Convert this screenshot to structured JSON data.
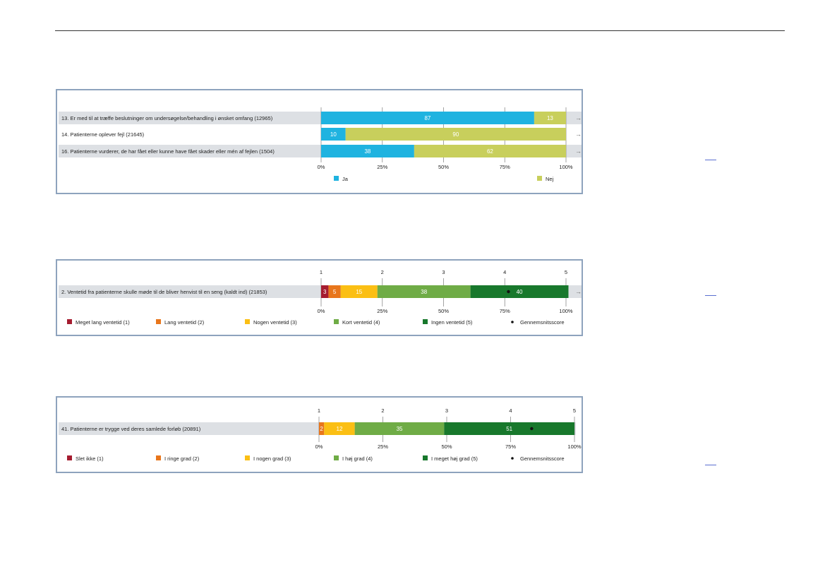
{
  "chart_data": [
    {
      "type": "bar",
      "stacked": true,
      "orientation": "horizontal",
      "percent_axis": true,
      "xlim": [
        0,
        100
      ],
      "x_ticks": [
        "0%",
        "25%",
        "50%",
        "75%",
        "100%"
      ],
      "categories": [
        "13. Er med til at træffe beslutninger om undersøgelse/behandling i ønsket omfang (12965)",
        "14. Patienterne oplever fejl (21645)",
        "16. Patienterne vurderer, de har fået eller kunne have fået skader eller mén af fejlen (1504)"
      ],
      "series": [
        {
          "name": "Ja",
          "color": "#1fb3e0",
          "values": [
            87,
            10,
            38
          ]
        },
        {
          "name": "Nej",
          "color": "#c8cf5c",
          "values": [
            13,
            90,
            62
          ]
        }
      ],
      "arrow_glyph": "→",
      "legend": "bottom"
    },
    {
      "type": "bar",
      "stacked": true,
      "orientation": "horizontal",
      "percent_axis": true,
      "xlim": [
        0,
        100
      ],
      "x_ticks": [
        "0%",
        "25%",
        "50%",
        "75%",
        "100%"
      ],
      "score_ticks": [
        "1",
        "2",
        "3",
        "4",
        "5"
      ],
      "categories": [
        "2. Ventetid fra patienterne skulle møde til de bliver henvist til en seng (kaldt ind) (21853)"
      ],
      "series": [
        {
          "name": "Meget lang ventetid (1)",
          "color": "#a51c30",
          "values": [
            3
          ]
        },
        {
          "name": "Lang ventetid (2)",
          "color": "#e8761c",
          "values": [
            5
          ]
        },
        {
          "name": "Nogen ventetid (3)",
          "color": "#fbbf14",
          "values": [
            15
          ]
        },
        {
          "name": "Kort ventetid (4)",
          "color": "#6fac46",
          "values": [
            38
          ]
        },
        {
          "name": "Ingen ventetid (5)",
          "color": "#18782c",
          "values": [
            40
          ]
        }
      ],
      "average_score": [
        4.06
      ],
      "average_label": "Gennemsnitsscore",
      "arrow_glyph": "→",
      "legend": "bottom"
    },
    {
      "type": "bar",
      "stacked": true,
      "orientation": "horizontal",
      "percent_axis": true,
      "xlim": [
        0,
        100
      ],
      "x_ticks": [
        "0%",
        "25%",
        "50%",
        "75%",
        "100%"
      ],
      "score_ticks": [
        "1",
        "2",
        "3",
        "4",
        "5"
      ],
      "categories": [
        "41. Patienterne er trygge ved deres samlede forløb (20891)"
      ],
      "series": [
        {
          "name": "Slet ikke (1)",
          "color": "#a51c30",
          "values": [
            0
          ]
        },
        {
          "name": "I ringe grad (2)",
          "color": "#e8761c",
          "values": [
            2
          ]
        },
        {
          "name": "I nogen grad (3)",
          "color": "#fbbf14",
          "values": [
            12
          ]
        },
        {
          "name": "I høj grad (4)",
          "color": "#6fac46",
          "values": [
            35
          ]
        },
        {
          "name": "I meget høj grad (5)",
          "color": "#18782c",
          "values": [
            51
          ]
        }
      ],
      "average_score": [
        4.33
      ],
      "average_label": "Gennemsnitsscore",
      "legend": "bottom"
    }
  ]
}
